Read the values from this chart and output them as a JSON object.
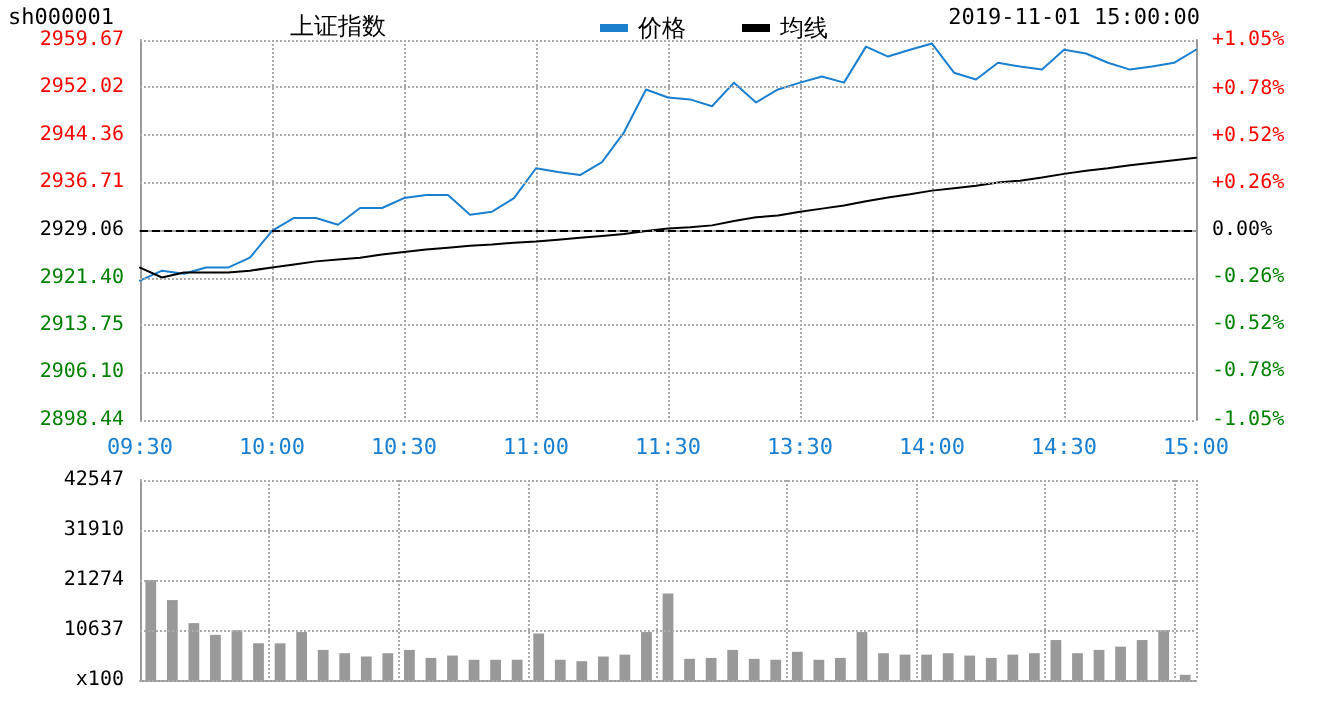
{
  "chart_data": [
    {
      "type": "line",
      "title": "上证指数",
      "annotations": [
        "sh000001",
        "2019-11-01 15:00:00"
      ],
      "categories": [
        "09:30",
        null,
        null,
        null,
        null,
        null,
        "10:00",
        null,
        null,
        null,
        null,
        null,
        "10:30",
        null,
        null,
        null,
        null,
        null,
        "11:00",
        null,
        null,
        null,
        null,
        null,
        "11:30",
        null,
        null,
        null,
        null,
        null,
        "13:30",
        null,
        null,
        null,
        null,
        null,
        "14:00",
        null,
        null,
        null,
        null,
        null,
        "14:30",
        null,
        null,
        null,
        null,
        null,
        "15:00"
      ],
      "series": [
        {
          "name": "价格",
          "color": "#1a7fcf",
          "values": [
            2920.9,
            2922.5,
            2922.0,
            2923.0,
            2923.0,
            2924.6,
            2928.9,
            2931.0,
            2931.0,
            2929.9,
            2932.6,
            2932.6,
            2934.2,
            2934.7,
            2934.7,
            2931.5,
            2932.0,
            2934.2,
            2939.0,
            2938.4,
            2937.9,
            2940.0,
            2944.8,
            2951.7,
            2950.4,
            2950.1,
            2949.0,
            2952.8,
            2949.6,
            2951.7,
            2952.8,
            2953.8,
            2952.8,
            2958.6,
            2957.0,
            2958.1,
            2959.1,
            2954.4,
            2953.3,
            2956.0,
            2955.4,
            2954.9,
            2958.1,
            2957.5,
            2956.0,
            2954.9,
            2955.4,
            2956.0,
            2958.1
          ]
        },
        {
          "name": "均线",
          "color": "#000000",
          "values": [
            2923.0,
            2921.4,
            2922.2,
            2922.2,
            2922.2,
            2922.5,
            2923.0,
            2923.5,
            2924.0,
            2924.3,
            2924.6,
            2925.1,
            2925.5,
            2925.9,
            2926.2,
            2926.5,
            2926.7,
            2927.0,
            2927.2,
            2927.5,
            2927.8,
            2928.1,
            2928.4,
            2928.9,
            2929.3,
            2929.5,
            2929.8,
            2930.5,
            2931.1,
            2931.4,
            2932.0,
            2932.5,
            2933.0,
            2933.7,
            2934.3,
            2934.8,
            2935.4,
            2935.8,
            2936.2,
            2936.7,
            2937.0,
            2937.5,
            2938.1,
            2938.6,
            2939.0,
            2939.5,
            2939.9,
            2940.3,
            2940.7
          ]
        }
      ],
      "ylim": [
        2898.44,
        2959.67
      ],
      "yticks": [
        {
          "value": 2898.44,
          "label": "2898.44"
        },
        {
          "value": 2906.1,
          "label": "2906.10"
        },
        {
          "value": 2913.75,
          "label": "2913.75"
        },
        {
          "value": 2921.4,
          "label": "2921.40"
        },
        {
          "value": 2929.06,
          "label": "2929.06"
        },
        {
          "value": 2936.71,
          "label": "2936.71"
        },
        {
          "value": 2944.36,
          "label": "2944.36"
        },
        {
          "value": 2952.02,
          "label": "2952.02"
        },
        {
          "value": 2959.67,
          "label": "2959.67"
        }
      ],
      "y2lim": [
        -1.05,
        1.05
      ],
      "y2ticks": [
        {
          "value": -1.05,
          "label": "-1.05%"
        },
        {
          "value": -0.78,
          "label": "-0.78%"
        },
        {
          "value": -0.52,
          "label": "-0.52%"
        },
        {
          "value": -0.26,
          "label": "-0.26%"
        },
        {
          "value": 0,
          "label": "0.00%"
        },
        {
          "value": 0.26,
          "label": "+0.26%"
        },
        {
          "value": 0.52,
          "label": "+0.52%"
        },
        {
          "value": 0.78,
          "label": "+0.78%"
        },
        {
          "value": 1.05,
          "label": "+1.05%"
        }
      ],
      "ref_lines": [
        {
          "axis": "y",
          "value": 2929.06,
          "color": "#000000",
          "line_style": "dashed"
        }
      ],
      "grid": true,
      "legend": "top",
      "marker": "none",
      "line_style": "solid"
    },
    {
      "type": "bar",
      "categories": [
        null,
        null,
        null,
        null,
        null,
        null,
        null,
        null,
        null,
        null,
        null,
        null,
        null,
        null,
        null,
        null,
        null,
        null,
        null,
        null,
        null,
        null,
        null,
        null,
        null,
        null,
        null,
        null,
        null,
        null,
        null,
        null,
        null,
        null,
        null,
        null,
        null,
        null,
        null,
        null,
        null,
        null,
        null,
        null,
        null,
        null,
        null,
        null,
        null
      ],
      "values": [
        21300,
        17000,
        12100,
        9600,
        10600,
        7800,
        7800,
        10200,
        6400,
        5700,
        5000,
        5700,
        6400,
        4700,
        5200,
        4300,
        4300,
        4300,
        9900,
        4300,
        4000,
        5000,
        5400,
        10200,
        18400,
        4500,
        4700,
        6400,
        4500,
        4300,
        6000,
        4300,
        4700,
        10200,
        5700,
        5400,
        5400,
        5700,
        5200,
        4700,
        5400,
        5700,
        8500,
        5700,
        6400,
        7100,
        8500,
        10600,
        1100
      ],
      "color": "#999999",
      "ylim": [
        0,
        42547
      ],
      "yticks": [
        {
          "value": 0,
          "label": "x100"
        },
        10637,
        21274,
        31910,
        42547
      ],
      "grid": true,
      "tick_labels": "y"
    }
  ]
}
